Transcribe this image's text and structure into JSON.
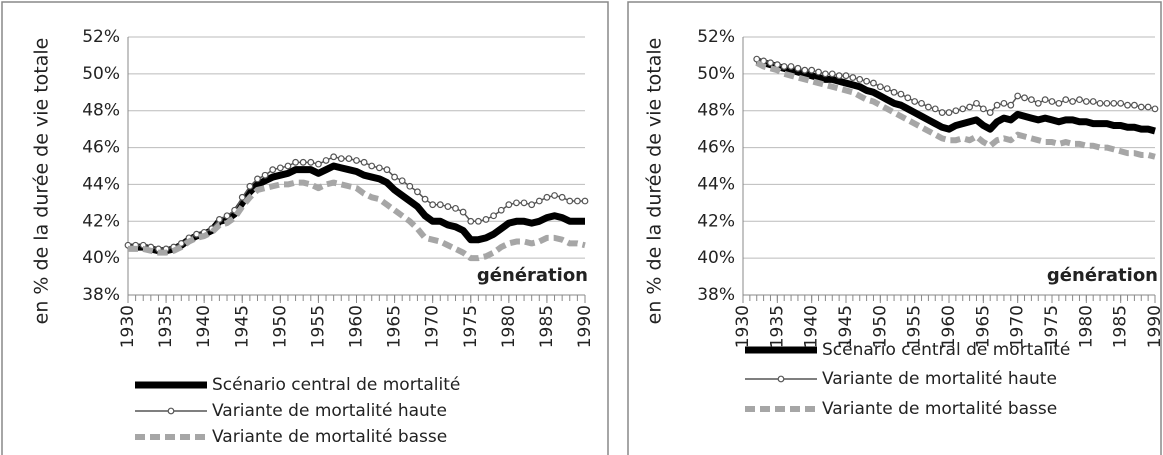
{
  "chart_data": [
    {
      "type": "line",
      "ylabel": "en % de la durée de vie totale",
      "annotation": "génération",
      "x": [
        1930,
        1931,
        1932,
        1933,
        1934,
        1935,
        1936,
        1937,
        1938,
        1939,
        1940,
        1941,
        1942,
        1943,
        1944,
        1945,
        1946,
        1947,
        1948,
        1949,
        1950,
        1951,
        1952,
        1953,
        1954,
        1955,
        1956,
        1957,
        1958,
        1959,
        1960,
        1961,
        1962,
        1963,
        1964,
        1965,
        1966,
        1967,
        1968,
        1969,
        1970,
        1971,
        1972,
        1973,
        1974,
        1975,
        1976,
        1977,
        1978,
        1979,
        1980,
        1981,
        1982,
        1983,
        1984,
        1985,
        1986,
        1987,
        1988,
        1989,
        1990
      ],
      "series": [
        {
          "name": "Scénario central de mortalité",
          "color": "#000000",
          "values": [
            40.6,
            40.6,
            40.6,
            40.5,
            40.4,
            40.4,
            40.5,
            40.7,
            41.0,
            41.2,
            41.3,
            41.5,
            42.0,
            42.1,
            42.4,
            43.0,
            43.6,
            44.0,
            44.2,
            44.4,
            44.5,
            44.6,
            44.8,
            44.8,
            44.8,
            44.6,
            44.8,
            45.0,
            44.9,
            44.8,
            44.7,
            44.5,
            44.4,
            44.3,
            44.1,
            43.7,
            43.4,
            43.1,
            42.8,
            42.3,
            42.0,
            42.0,
            41.8,
            41.7,
            41.5,
            41.0,
            41.0,
            41.1,
            41.3,
            41.6,
            41.9,
            42.0,
            42.0,
            41.9,
            42.0,
            42.2,
            42.3,
            42.2,
            42.0,
            42.0,
            42.0
          ]
        },
        {
          "name": "Variante de mortalité haute",
          "color": "#555555",
          "values": [
            40.7,
            40.7,
            40.7,
            40.6,
            40.5,
            40.5,
            40.6,
            40.8,
            41.1,
            41.3,
            41.4,
            41.6,
            42.1,
            42.3,
            42.6,
            43.3,
            43.9,
            44.3,
            44.5,
            44.8,
            44.9,
            45.0,
            45.2,
            45.2,
            45.2,
            45.1,
            45.3,
            45.5,
            45.4,
            45.4,
            45.3,
            45.2,
            45.0,
            44.9,
            44.8,
            44.4,
            44.2,
            43.9,
            43.6,
            43.2,
            42.9,
            42.9,
            42.8,
            42.7,
            42.5,
            42.0,
            42.0,
            42.1,
            42.3,
            42.6,
            42.9,
            43.0,
            43.0,
            42.9,
            43.1,
            43.3,
            43.4,
            43.3,
            43.1,
            43.1,
            43.1
          ]
        },
        {
          "name": "Variante de mortalité basse",
          "color": "#a6a6a6",
          "values": [
            40.5,
            40.5,
            40.5,
            40.4,
            40.3,
            40.3,
            40.4,
            40.6,
            40.9,
            41.1,
            41.2,
            41.4,
            41.8,
            41.9,
            42.2,
            42.8,
            43.3,
            43.7,
            43.8,
            43.9,
            44.0,
            44.0,
            44.1,
            44.1,
            44.0,
            43.8,
            44.0,
            44.1,
            44.0,
            43.9,
            43.8,
            43.5,
            43.3,
            43.2,
            42.9,
            42.6,
            42.3,
            42.0,
            41.6,
            41.1,
            41.0,
            40.9,
            40.7,
            40.5,
            40.3,
            40.0,
            40.0,
            40.1,
            40.3,
            40.6,
            40.8,
            40.9,
            40.9,
            40.8,
            40.9,
            41.1,
            41.1,
            41.0,
            40.8,
            40.8,
            40.7
          ]
        }
      ],
      "xlim": [
        1930,
        1990
      ],
      "xticks": [
        1930,
        1935,
        1940,
        1945,
        1950,
        1955,
        1960,
        1965,
        1970,
        1975,
        1980,
        1985,
        1990
      ],
      "ylim": [
        38,
        52
      ],
      "yticks": [
        {
          "value": 38,
          "label": "38%"
        },
        {
          "value": 40,
          "label": "40%"
        },
        {
          "value": 42,
          "label": "42%"
        },
        {
          "value": 44,
          "label": "44%"
        },
        {
          "value": 46,
          "label": "46%"
        },
        {
          "value": 48,
          "label": "48%"
        },
        {
          "value": 50,
          "label": "50%"
        },
        {
          "value": 52,
          "label": "52%"
        }
      ],
      "grid": true,
      "legend": "bottom"
    },
    {
      "type": "line",
      "ylabel": "en % de la durée de vie totale",
      "annotation": "génération",
      "x": [
        1932,
        1933,
        1934,
        1935,
        1936,
        1937,
        1938,
        1939,
        1940,
        1941,
        1942,
        1943,
        1944,
        1945,
        1946,
        1947,
        1948,
        1949,
        1950,
        1951,
        1952,
        1953,
        1954,
        1955,
        1956,
        1957,
        1958,
        1959,
        1960,
        1961,
        1962,
        1963,
        1964,
        1965,
        1966,
        1967,
        1968,
        1969,
        1970,
        1971,
        1972,
        1973,
        1974,
        1975,
        1976,
        1977,
        1978,
        1979,
        1980,
        1981,
        1982,
        1983,
        1984,
        1985,
        1986,
        1987,
        1988,
        1989,
        1990
      ],
      "series": [
        {
          "name": "Scénario central de mortalité",
          "color": "#000000",
          "values": [
            50.7,
            50.6,
            50.5,
            50.4,
            50.3,
            50.2,
            50.1,
            50.0,
            49.9,
            49.8,
            49.7,
            49.7,
            49.6,
            49.5,
            49.4,
            49.3,
            49.1,
            49.0,
            48.8,
            48.6,
            48.4,
            48.3,
            48.1,
            47.9,
            47.7,
            47.5,
            47.3,
            47.1,
            47.0,
            47.2,
            47.3,
            47.4,
            47.5,
            47.2,
            47.0,
            47.4,
            47.6,
            47.5,
            47.8,
            47.7,
            47.6,
            47.5,
            47.6,
            47.5,
            47.4,
            47.5,
            47.5,
            47.4,
            47.4,
            47.3,
            47.3,
            47.3,
            47.2,
            47.2,
            47.1,
            47.1,
            47.0,
            47.0,
            46.9
          ]
        },
        {
          "name": "Variante de mortalité haute",
          "color": "#555555",
          "values": [
            50.8,
            50.7,
            50.6,
            50.5,
            50.4,
            50.4,
            50.3,
            50.2,
            50.2,
            50.1,
            50.0,
            50.0,
            49.9,
            49.9,
            49.8,
            49.7,
            49.6,
            49.5,
            49.3,
            49.2,
            49.0,
            48.9,
            48.7,
            48.5,
            48.4,
            48.2,
            48.1,
            47.9,
            47.9,
            48.0,
            48.1,
            48.2,
            48.4,
            48.1,
            47.9,
            48.3,
            48.4,
            48.3,
            48.8,
            48.7,
            48.6,
            48.4,
            48.6,
            48.5,
            48.4,
            48.6,
            48.5,
            48.6,
            48.5,
            48.5,
            48.4,
            48.4,
            48.4,
            48.4,
            48.3,
            48.3,
            48.2,
            48.2,
            48.1
          ]
        },
        {
          "name": "Variante de mortalité basse",
          "color": "#a6a6a6",
          "values": [
            50.6,
            50.4,
            50.3,
            50.2,
            50.0,
            49.9,
            49.8,
            49.7,
            49.6,
            49.5,
            49.4,
            49.3,
            49.2,
            49.1,
            49.0,
            48.8,
            48.6,
            48.5,
            48.3,
            48.1,
            47.9,
            47.7,
            47.5,
            47.3,
            47.1,
            46.9,
            46.7,
            46.5,
            46.4,
            46.4,
            46.5,
            46.4,
            46.6,
            46.3,
            46.1,
            46.4,
            46.5,
            46.4,
            46.7,
            46.6,
            46.5,
            46.4,
            46.3,
            46.3,
            46.2,
            46.3,
            46.2,
            46.2,
            46.1,
            46.1,
            46.0,
            46.0,
            45.9,
            45.8,
            45.7,
            45.7,
            45.6,
            45.6,
            45.5
          ]
        }
      ],
      "xlim": [
        1930,
        1990
      ],
      "xticks": [
        1930,
        1935,
        1940,
        1945,
        1950,
        1955,
        1960,
        1965,
        1970,
        1975,
        1980,
        1985,
        1990
      ],
      "ylim": [
        38,
        52
      ],
      "yticks": [
        {
          "value": 38,
          "label": "38%"
        },
        {
          "value": 40,
          "label": "40%"
        },
        {
          "value": 42,
          "label": "42%"
        },
        {
          "value": 44,
          "label": "44%"
        },
        {
          "value": 46,
          "label": "46%"
        },
        {
          "value": 48,
          "label": "48%"
        },
        {
          "value": 50,
          "label": "50%"
        },
        {
          "value": 52,
          "label": "52%"
        }
      ],
      "grid": true,
      "legend": "bottom"
    }
  ]
}
